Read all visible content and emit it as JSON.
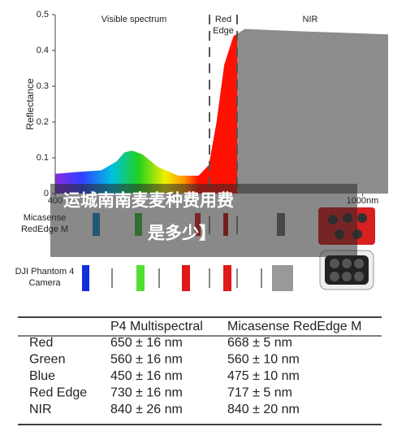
{
  "chart_data": {
    "type": "area",
    "y_label": "Reflectance",
    "annotations": [
      "Visible spectrum",
      "Red",
      "Edge",
      "NIR"
    ],
    "x": [
      400,
      440,
      490,
      520,
      535,
      550,
      570,
      600,
      640,
      680,
      700,
      715,
      730,
      748,
      770,
      850,
      950,
      1050
    ],
    "values": [
      0.055,
      0.06,
      0.065,
      0.09,
      0.115,
      0.12,
      0.11,
      0.075,
      0.05,
      0.05,
      0.08,
      0.2,
      0.36,
      0.44,
      0.46,
      0.455,
      0.45,
      0.445
    ],
    "xlim": [
      400,
      1050
    ],
    "ylim": [
      0,
      0.5
    ],
    "xticks": [
      400,
      {
        "value": 1000,
        "label": "1000nm"
      }
    ],
    "yticks": [
      0,
      0.1,
      0.2,
      0.3,
      0.4,
      0.5
    ]
  },
  "overlay": {
    "lines": [
      "运城南南麦麦种费用费",
      "是多少】"
    ]
  },
  "bands": {
    "rows": [
      {
        "label": [
          "Micasense",
          "RedEdge M"
        ]
      },
      {
        "label": [
          "DJI Phantom 4",
          "Camera"
        ]
      }
    ]
  },
  "table": {
    "columns": [
      "P4 Multispectral",
      "Micasense RedEdge M"
    ],
    "rows": [
      [
        "Red",
        "650 ± 16 nm",
        "668 ± 5 nm"
      ],
      [
        "Green",
        "560 ± 16 nm",
        "560 ± 10 nm"
      ],
      [
        "Blue",
        "450 ± 16 nm",
        "475 ± 10 nm"
      ],
      [
        "Red Edge",
        "730 ± 16 nm",
        "717 ± 5 nm"
      ],
      [
        "NIR",
        "840 ± 26 nm",
        "840 ± 20 nm"
      ]
    ]
  }
}
